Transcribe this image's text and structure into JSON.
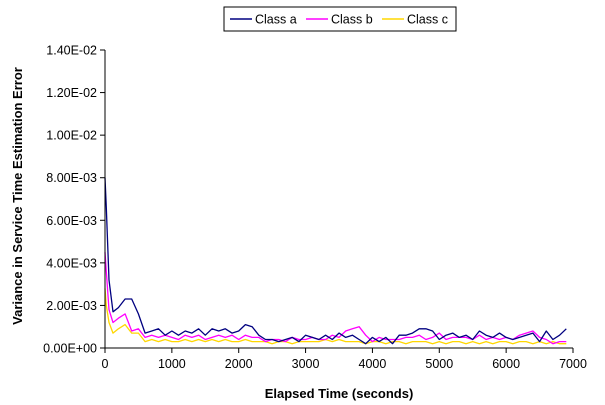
{
  "chart_data": {
    "type": "line",
    "xlabel": "Elapsed Time (seconds)",
    "ylabel": "Variance in Service Time Estimation Error",
    "xlim": [
      0,
      7000
    ],
    "ylim": [
      0,
      0.014
    ],
    "x_ticks": [
      0,
      1000,
      2000,
      3000,
      4000,
      5000,
      6000,
      7000
    ],
    "x_tick_labels": [
      "0",
      "1000",
      "2000",
      "3000",
      "4000",
      "5000",
      "6000",
      "7000"
    ],
    "y_ticks": [
      0,
      0.002,
      0.004,
      0.006,
      0.008,
      0.01,
      0.012,
      0.014
    ],
    "y_tick_labels": [
      "0.00E+00",
      "2.00E-03",
      "4.00E-03",
      "6.00E-03",
      "8.00E-03",
      "1.00E-02",
      "1.20E-02",
      "1.40E-02"
    ],
    "grid": false,
    "legend_position": "top",
    "series": [
      {
        "name": "Class a",
        "color": "#000080",
        "x": [
          0,
          20,
          60,
          120,
          200,
          300,
          400,
          500,
          600,
          700,
          800,
          900,
          1000,
          1100,
          1200,
          1300,
          1400,
          1500,
          1600,
          1700,
          1800,
          1900,
          2000,
          2100,
          2200,
          2300,
          2400,
          2500,
          2600,
          2700,
          2800,
          2900,
          3000,
          3100,
          3200,
          3300,
          3400,
          3500,
          3600,
          3700,
          3800,
          3900,
          4000,
          4100,
          4200,
          4300,
          4400,
          4500,
          4600,
          4700,
          4800,
          4900,
          5000,
          5100,
          5200,
          5300,
          5400,
          5500,
          5600,
          5700,
          5800,
          5900,
          6000,
          6100,
          6200,
          6300,
          6400,
          6500,
          6600,
          6700,
          6800,
          6900
        ],
        "y": [
          0.008,
          0.0066,
          0.0032,
          0.0017,
          0.0019,
          0.0023,
          0.0023,
          0.0016,
          0.0007,
          0.0008,
          0.0009,
          0.0006,
          0.0008,
          0.0006,
          0.0008,
          0.0007,
          0.0009,
          0.0006,
          0.0009,
          0.0008,
          0.0009,
          0.0007,
          0.0008,
          0.0011,
          0.001,
          0.0006,
          0.0004,
          0.0004,
          0.0003,
          0.0004,
          0.0005,
          0.0003,
          0.0006,
          0.0005,
          0.0004,
          0.0006,
          0.0004,
          0.0007,
          0.0005,
          0.0006,
          0.0004,
          0.0002,
          0.0005,
          0.0003,
          0.0005,
          0.0002,
          0.0006,
          0.0006,
          0.0007,
          0.0009,
          0.0009,
          0.0008,
          0.0004,
          0.0006,
          0.0007,
          0.0005,
          0.0006,
          0.0004,
          0.0008,
          0.0006,
          0.0005,
          0.0007,
          0.0005,
          0.0004,
          0.0005,
          0.0006,
          0.0007,
          0.0003,
          0.0008,
          0.0004,
          0.0006,
          0.0009
        ]
      },
      {
        "name": "Class b",
        "color": "#ff00ff",
        "x": [
          0,
          20,
          60,
          120,
          200,
          300,
          400,
          500,
          600,
          700,
          800,
          900,
          1000,
          1100,
          1200,
          1300,
          1400,
          1500,
          1600,
          1700,
          1800,
          1900,
          2000,
          2100,
          2200,
          2300,
          2400,
          2500,
          2600,
          2700,
          2800,
          2900,
          3000,
          3100,
          3200,
          3300,
          3400,
          3500,
          3600,
          3700,
          3800,
          3900,
          4000,
          4100,
          4200,
          4300,
          4400,
          4500,
          4600,
          4700,
          4800,
          4900,
          5000,
          5100,
          5200,
          5300,
          5400,
          5500,
          5600,
          5700,
          5800,
          5900,
          6000,
          6100,
          6200,
          6300,
          6400,
          6500,
          6600,
          6700,
          6800,
          6900
        ],
        "y": [
          0.0045,
          0.0036,
          0.0018,
          0.0012,
          0.0014,
          0.0016,
          0.0008,
          0.0009,
          0.0005,
          0.0006,
          0.0005,
          0.0006,
          0.0005,
          0.0004,
          0.0006,
          0.0005,
          0.0006,
          0.0004,
          0.0005,
          0.0006,
          0.0005,
          0.0006,
          0.0004,
          0.0006,
          0.0005,
          0.0005,
          0.0003,
          0.0004,
          0.0004,
          0.0003,
          0.0005,
          0.0004,
          0.0004,
          0.0005,
          0.0004,
          0.0004,
          0.0006,
          0.0005,
          0.0008,
          0.0009,
          0.001,
          0.0006,
          0.0003,
          0.0005,
          0.0004,
          0.0004,
          0.0004,
          0.0005,
          0.0005,
          0.0006,
          0.0004,
          0.0005,
          0.0007,
          0.0004,
          0.0005,
          0.0005,
          0.0005,
          0.0004,
          0.0006,
          0.0004,
          0.0005,
          0.0004,
          0.0005,
          0.0004,
          0.0006,
          0.0007,
          0.0008,
          0.0005,
          0.0004,
          0.0002,
          0.0003,
          0.0003
        ]
      },
      {
        "name": "Class c",
        "color": "#ffd700",
        "x": [
          0,
          20,
          60,
          120,
          200,
          300,
          400,
          500,
          600,
          700,
          800,
          900,
          1000,
          1100,
          1200,
          1300,
          1400,
          1500,
          1600,
          1700,
          1800,
          1900,
          2000,
          2100,
          2200,
          2300,
          2400,
          2500,
          2600,
          2700,
          2800,
          2900,
          3000,
          3100,
          3200,
          3300,
          3400,
          3500,
          3600,
          3700,
          3800,
          3900,
          4000,
          4100,
          4200,
          4300,
          4400,
          4500,
          4600,
          4700,
          4800,
          4900,
          5000,
          5100,
          5200,
          5300,
          5400,
          5500,
          5600,
          5700,
          5800,
          5900,
          6000,
          6100,
          6200,
          6300,
          6400,
          6500,
          6600,
          6700,
          6800,
          6900
        ],
        "y": [
          0.0028,
          0.002,
          0.0012,
          0.0007,
          0.0009,
          0.0011,
          0.0007,
          0.0007,
          0.0003,
          0.0004,
          0.0003,
          0.0004,
          0.0003,
          0.0003,
          0.0004,
          0.0003,
          0.0004,
          0.0003,
          0.0004,
          0.0003,
          0.0004,
          0.0003,
          0.0003,
          0.0004,
          0.0003,
          0.0003,
          0.0003,
          0.0002,
          0.0003,
          0.0003,
          0.0002,
          0.0003,
          0.0003,
          0.0003,
          0.0003,
          0.0004,
          0.0003,
          0.0004,
          0.0003,
          0.0003,
          0.0003,
          0.0002,
          0.0003,
          0.0003,
          0.0002,
          0.0003,
          0.0003,
          0.0002,
          0.0003,
          0.0003,
          0.0003,
          0.0002,
          0.0003,
          0.0002,
          0.0003,
          0.0003,
          0.0002,
          0.0003,
          0.0002,
          0.0003,
          0.0002,
          0.0003,
          0.0003,
          0.0002,
          0.0003,
          0.0003,
          0.0002,
          0.0003,
          0.0002,
          0.0003,
          0.0002,
          0.0002
        ]
      }
    ]
  }
}
